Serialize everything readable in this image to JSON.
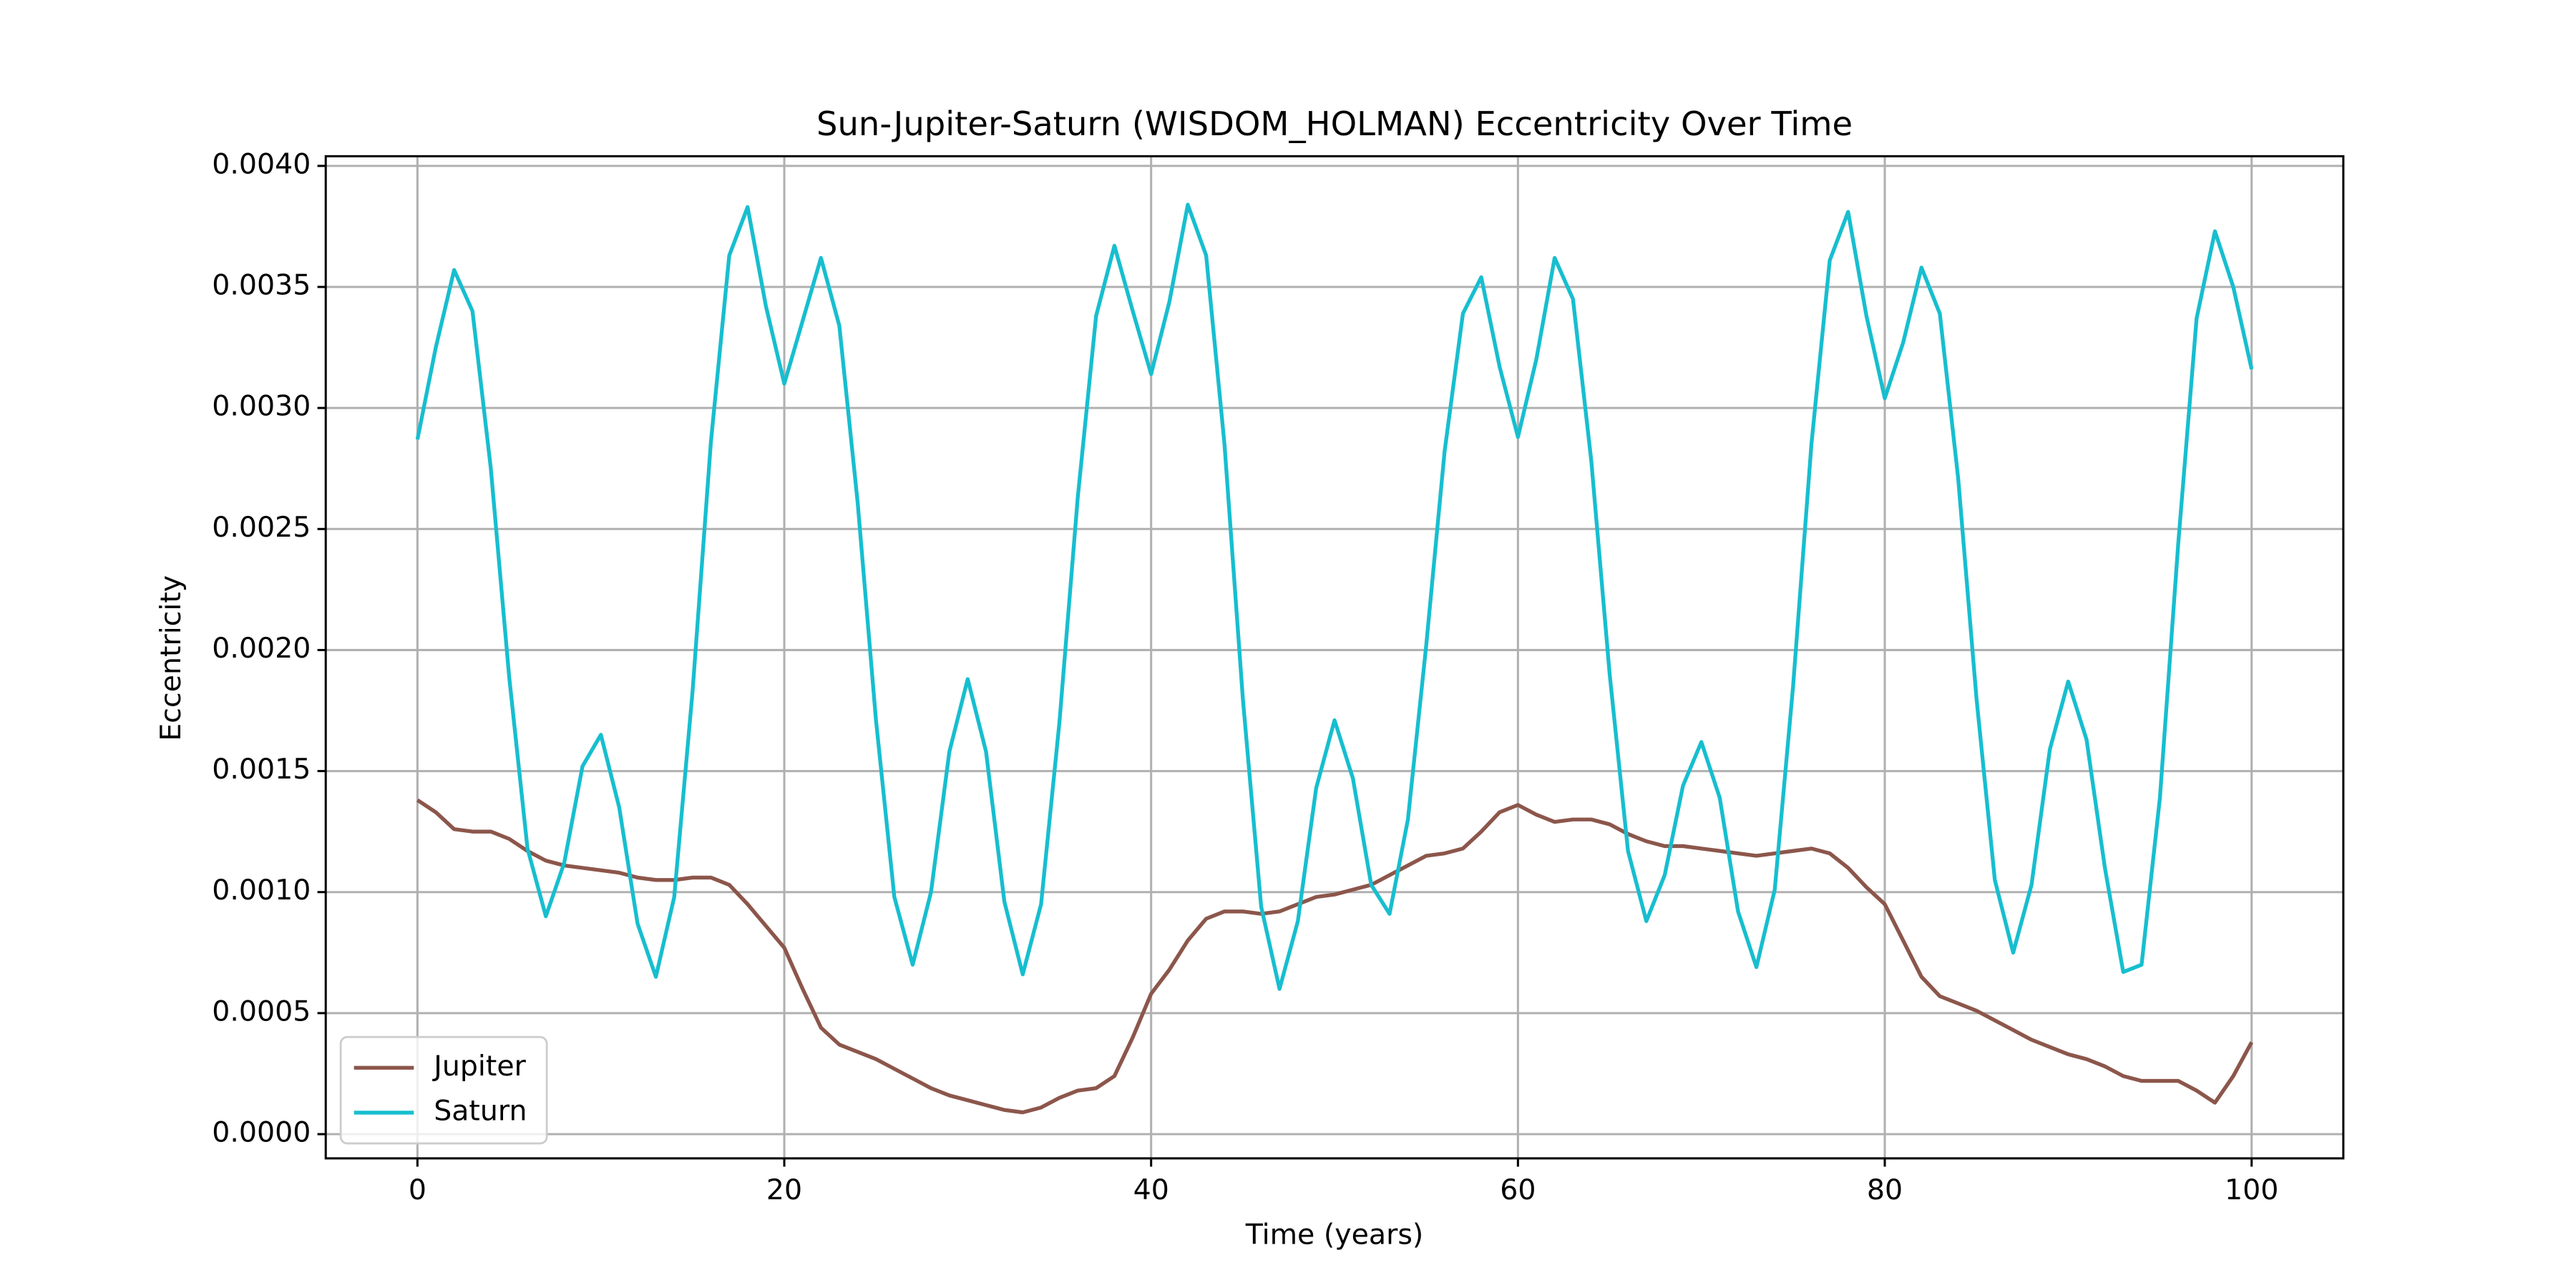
{
  "chart_data": {
    "type": "line",
    "title": "Sun-Jupiter-Saturn (WISDOM_HOLMAN) Eccentricity Over Time",
    "xlabel": "Time (years)",
    "ylabel": "Eccentricity",
    "x": [
      0,
      1,
      2,
      3,
      4,
      5,
      6,
      7,
      8,
      9,
      10,
      11,
      12,
      13,
      14,
      15,
      16,
      17,
      18,
      19,
      20,
      21,
      22,
      23,
      24,
      25,
      26,
      27,
      28,
      29,
      30,
      31,
      32,
      33,
      34,
      35,
      36,
      37,
      38,
      39,
      40,
      41,
      42,
      43,
      44,
      45,
      46,
      47,
      48,
      49,
      50,
      51,
      52,
      53,
      54,
      55,
      56,
      57,
      58,
      59,
      60,
      61,
      62,
      63,
      64,
      65,
      66,
      67,
      68,
      69,
      70,
      71,
      72,
      73,
      74,
      75,
      76,
      77,
      78,
      79,
      80,
      81,
      82,
      83,
      84,
      85,
      86,
      87,
      88,
      89,
      90,
      91,
      92,
      93,
      94,
      95,
      96,
      97,
      98,
      99,
      100
    ],
    "series": [
      {
        "name": "Jupiter",
        "color": "#8c564b",
        "values": [
          0.00138,
          0.00133,
          0.00126,
          0.00125,
          0.00125,
          0.00122,
          0.00117,
          0.00113,
          0.00111,
          0.0011,
          0.00109,
          0.00108,
          0.00106,
          0.00105,
          0.00105,
          0.00106,
          0.00106,
          0.00103,
          0.00095,
          0.00086,
          0.00077,
          0.0006,
          0.00044,
          0.00037,
          0.00034,
          0.00031,
          0.00027,
          0.00023,
          0.00019,
          0.00016,
          0.00014,
          0.00012,
          0.0001,
          9e-05,
          0.00011,
          0.00015,
          0.00018,
          0.00019,
          0.00024,
          0.0004,
          0.00058,
          0.00068,
          0.0008,
          0.00089,
          0.00092,
          0.00092,
          0.00091,
          0.00092,
          0.00095,
          0.00098,
          0.00099,
          0.00101,
          0.00103,
          0.00107,
          0.00111,
          0.00115,
          0.00116,
          0.00118,
          0.00125,
          0.00133,
          0.00136,
          0.00132,
          0.00129,
          0.0013,
          0.0013,
          0.00128,
          0.00124,
          0.00121,
          0.00119,
          0.00119,
          0.00118,
          0.00117,
          0.00116,
          0.00115,
          0.00116,
          0.00117,
          0.00118,
          0.00116,
          0.0011,
          0.00102,
          0.00095,
          0.0008,
          0.00065,
          0.00057,
          0.00054,
          0.00051,
          0.00047,
          0.00043,
          0.00039,
          0.00036,
          0.00033,
          0.00031,
          0.00028,
          0.00024,
          0.00022,
          0.00022,
          0.00022,
          0.00018,
          0.00013,
          0.00024,
          0.00038
        ]
      },
      {
        "name": "Saturn",
        "color": "#17becf",
        "values": [
          0.00287,
          0.00325,
          0.00357,
          0.0034,
          0.00275,
          0.00189,
          0.00118,
          0.0009,
          0.00112,
          0.00152,
          0.00165,
          0.00135,
          0.00087,
          0.00065,
          0.00098,
          0.00183,
          0.00286,
          0.00363,
          0.00383,
          0.00342,
          0.0031,
          0.00336,
          0.00362,
          0.00334,
          0.00261,
          0.00171,
          0.00098,
          0.0007,
          0.001,
          0.00158,
          0.00188,
          0.00158,
          0.00096,
          0.00066,
          0.00095,
          0.0017,
          0.00263,
          0.00338,
          0.00367,
          0.0034,
          0.00314,
          0.00344,
          0.00384,
          0.00363,
          0.00285,
          0.0018,
          0.00094,
          0.0006,
          0.00088,
          0.00143,
          0.00171,
          0.00147,
          0.00103,
          0.00091,
          0.0013,
          0.00202,
          0.00282,
          0.00339,
          0.00354,
          0.00317,
          0.00288,
          0.0032,
          0.00362,
          0.00345,
          0.00278,
          0.0019,
          0.00117,
          0.00088,
          0.00107,
          0.00144,
          0.00162,
          0.00139,
          0.00092,
          0.00069,
          0.00101,
          0.00185,
          0.00285,
          0.00361,
          0.00381,
          0.00338,
          0.00304,
          0.00327,
          0.00358,
          0.00339,
          0.00271,
          0.0018,
          0.00105,
          0.00075,
          0.00103,
          0.00159,
          0.00187,
          0.00163,
          0.0011,
          0.00067,
          0.0007,
          0.00139,
          0.00244,
          0.00337,
          0.00373,
          0.0035,
          0.00316
        ]
      }
    ],
    "xlim": [
      -5,
      105
    ],
    "xticks": [
      0,
      20,
      40,
      60,
      80,
      100
    ],
    "ylim": [
      -0.0001,
      0.00404
    ],
    "yticks": [
      {
        "value": 0,
        "label": "0.0000"
      },
      {
        "value": 0.0005,
        "label": "0.0005"
      },
      {
        "value": 0.001,
        "label": "0.0010"
      },
      {
        "value": 0.0015,
        "label": "0.0015"
      },
      {
        "value": 0.002,
        "label": "0.0020"
      },
      {
        "value": 0.0025,
        "label": "0.0025"
      },
      {
        "value": 0.003,
        "label": "0.0030"
      },
      {
        "value": 0.0035,
        "label": "0.0035"
      },
      {
        "value": 0.004,
        "label": "0.0040"
      }
    ],
    "grid": true,
    "legend": "lower left"
  }
}
